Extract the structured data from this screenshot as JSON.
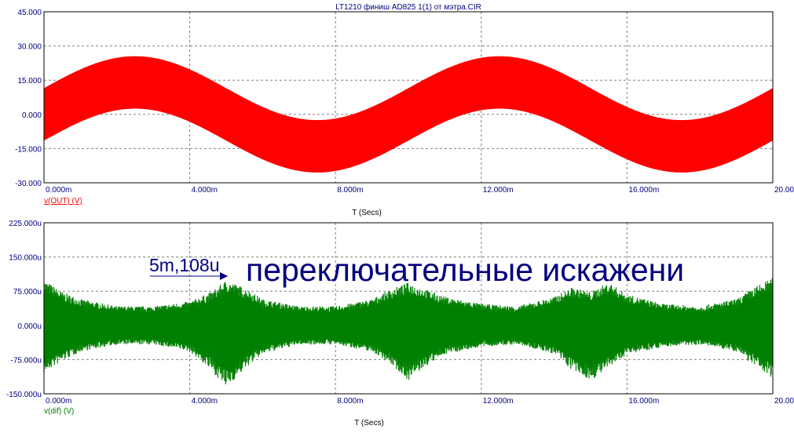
{
  "title": "LT1210 финиш AD825 1(1) от мэтра.CIR",
  "colors": {
    "background": "#ffffff",
    "frame": "#000000",
    "grid": "#808080",
    "tick_text": "#000080",
    "out_trace": "#ff0000",
    "dif_trace": "#008000",
    "annotation": "#000080"
  },
  "chart_data": [
    {
      "type": "area",
      "xlabel": "T (Secs)",
      "xlim": [
        0,
        20
      ],
      "x_ticks": [
        0,
        4,
        8,
        12,
        16,
        20
      ],
      "x_tick_labels": [
        "0.000m",
        "4.000m",
        "8.000m",
        "12.000m",
        "16.000m",
        "20.000m"
      ],
      "ylim": [
        -30,
        45
      ],
      "y_ticks": [
        45,
        30,
        15,
        0,
        -15,
        -30
      ],
      "y_tick_labels": [
        "45.000",
        "30.000",
        "15.000",
        "0.000",
        "-15.000",
        "-30.000"
      ],
      "grid": true,
      "series": [
        {
          "name": "v(OUT) (V)",
          "color": "#ff0000",
          "description_points": {
            "x": [
              0,
              2.5,
              5,
              7.5,
              10,
              12.5,
              15,
              17.5,
              20
            ],
            "center": [
              0,
              14,
              0,
              -14,
              0,
              14,
              0,
              -14,
              0
            ],
            "half_band": 11.5
          }
        }
      ]
    },
    {
      "type": "area",
      "xlabel": "T (Secs)",
      "xlim": [
        0,
        20
      ],
      "x_ticks": [
        0,
        4,
        8,
        12,
        16,
        20
      ],
      "x_tick_labels": [
        "0.000m",
        "4.000m",
        "8.000m",
        "12.000m",
        "16.000m",
        "20.000m"
      ],
      "ylim": [
        -150,
        225
      ],
      "y_ticks": [
        225,
        150,
        75,
        0,
        -75,
        -150
      ],
      "y_tick_labels": [
        "225.000u",
        "150.000u",
        "75.000u",
        "0.000u",
        "-75.000u",
        "-150.000u"
      ],
      "grid": true,
      "series": [
        {
          "name": "v(dif) (V)",
          "color": "#008000",
          "envelope": {
            "x": [
              0,
              0.5,
              1,
              2,
              3,
              4,
              4.6,
              5,
              5.6,
              6,
              7,
              8,
              9,
              9.5,
              10,
              10.5,
              11,
              12,
              13,
              14,
              14.5,
              15,
              15.5,
              16,
              17,
              18,
              19,
              19.5,
              20
            ],
            "upper": [
              95,
              70,
              55,
              40,
              40,
              50,
              70,
              95,
              75,
              55,
              40,
              40,
              55,
              75,
              90,
              75,
              60,
              45,
              40,
              60,
              80,
              70,
              90,
              65,
              45,
              40,
              55,
              80,
              100
            ],
            "lower": [
              -100,
              -75,
              -55,
              -40,
              -40,
              -55,
              -95,
              -130,
              -85,
              -60,
              -40,
              -40,
              -55,
              -80,
              -115,
              -85,
              -60,
              -45,
              -40,
              -60,
              -95,
              -115,
              -90,
              -60,
              -45,
              -40,
              -55,
              -85,
              -110
            ]
          }
        }
      ],
      "annotations": [
        {
          "text": "5m,108u",
          "x": 5,
          "y": 108
        },
        {
          "text": "переключательные искажени"
        }
      ]
    }
  ]
}
